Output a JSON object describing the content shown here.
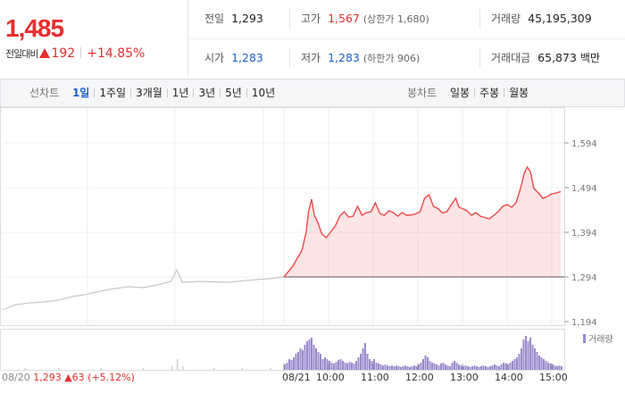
{
  "quote": {
    "current_price": "1,485",
    "change_label": "전일대비",
    "change_amount": "192",
    "change_percent": "+14.85%",
    "color_up": "#e62e2e",
    "color_down": "#1f5fcf"
  },
  "stats": {
    "prev_close": {
      "label": "전일",
      "value": "1,293"
    },
    "high": {
      "label": "고가",
      "value": "1,567",
      "sub": "(상한가 1,680)"
    },
    "volume": {
      "label": "거래량",
      "value": "45,195,309"
    },
    "open": {
      "label": "시가",
      "value": "1,283"
    },
    "low": {
      "label": "저가",
      "value": "1,283",
      "sub": "(하한가 906)"
    },
    "turnover": {
      "label": "거래대금",
      "value": "65,873",
      "unit": "백만"
    }
  },
  "toolbar": {
    "line_chart_label": "선차트",
    "periods": [
      "1일",
      "1주일",
      "3개월",
      "1년",
      "3년",
      "5년",
      "10년"
    ],
    "selected_period": "1일",
    "candle_chart_label": "봉차트",
    "candle_periods": [
      "일봉",
      "주봉",
      "월봉"
    ]
  },
  "chart_data": {
    "type": "line",
    "yticks": [
      "1,594",
      "1,494",
      "1,394",
      "1,294",
      "1,194"
    ],
    "ylim": [
      1194,
      1594
    ],
    "baseline": 1294,
    "x_labels": [
      "08/21",
      "10:00",
      "11:00",
      "12:00",
      "13:00",
      "14:00",
      "15:00"
    ],
    "prev_day": {
      "date": "08/20",
      "close": "1,293",
      "change": "63",
      "change_percent": "(+5.12%)"
    },
    "volume_legend": "거래량",
    "prev_day_series": [
      [
        0,
        1220
      ],
      [
        0.05,
        1232
      ],
      [
        0.1,
        1236
      ],
      [
        0.15,
        1238
      ],
      [
        0.2,
        1242
      ],
      [
        0.25,
        1250
      ],
      [
        0.3,
        1255
      ],
      [
        0.35,
        1262
      ],
      [
        0.4,
        1268
      ],
      [
        0.45,
        1272
      ],
      [
        0.5,
        1270
      ],
      [
        0.55,
        1276
      ],
      [
        0.6,
        1284
      ],
      [
        0.62,
        1310
      ],
      [
        0.64,
        1282
      ],
      [
        0.7,
        1284
      ],
      [
        0.75,
        1283
      ],
      [
        0.8,
        1282
      ],
      [
        0.85,
        1285
      ],
      [
        0.9,
        1288
      ],
      [
        0.95,
        1290
      ],
      [
        1,
        1294
      ]
    ],
    "today_series": [
      [
        9.0,
        1294
      ],
      [
        9.1,
        1306
      ],
      [
        9.2,
        1318
      ],
      [
        9.3,
        1336
      ],
      [
        9.4,
        1352
      ],
      [
        9.5,
        1395
      ],
      [
        9.55,
        1440
      ],
      [
        9.62,
        1468
      ],
      [
        9.68,
        1432
      ],
      [
        9.75,
        1418
      ],
      [
        9.85,
        1390
      ],
      [
        9.95,
        1382
      ],
      [
        10.05,
        1395
      ],
      [
        10.15,
        1408
      ],
      [
        10.25,
        1430
      ],
      [
        10.35,
        1440
      ],
      [
        10.45,
        1428
      ],
      [
        10.55,
        1430
      ],
      [
        10.65,
        1452
      ],
      [
        10.75,
        1432
      ],
      [
        10.85,
        1438
      ],
      [
        10.95,
        1440
      ],
      [
        11.05,
        1460
      ],
      [
        11.15,
        1436
      ],
      [
        11.25,
        1432
      ],
      [
        11.35,
        1442
      ],
      [
        11.45,
        1438
      ],
      [
        11.55,
        1430
      ],
      [
        11.65,
        1438
      ],
      [
        11.75,
        1432
      ],
      [
        11.85,
        1433
      ],
      [
        11.95,
        1435
      ],
      [
        12.05,
        1440
      ],
      [
        12.15,
        1470
      ],
      [
        12.25,
        1478
      ],
      [
        12.35,
        1452
      ],
      [
        12.45,
        1447
      ],
      [
        12.55,
        1437
      ],
      [
        12.65,
        1440
      ],
      [
        12.75,
        1456
      ],
      [
        12.85,
        1470
      ],
      [
        12.92,
        1450
      ],
      [
        13.0,
        1447
      ],
      [
        13.1,
        1442
      ],
      [
        13.2,
        1432
      ],
      [
        13.3,
        1438
      ],
      [
        13.4,
        1430
      ],
      [
        13.5,
        1427
      ],
      [
        13.6,
        1424
      ],
      [
        13.7,
        1432
      ],
      [
        13.8,
        1440
      ],
      [
        13.9,
        1452
      ],
      [
        14.0,
        1456
      ],
      [
        14.1,
        1450
      ],
      [
        14.2,
        1460
      ],
      [
        14.3,
        1492
      ],
      [
        14.38,
        1525
      ],
      [
        14.45,
        1540
      ],
      [
        14.52,
        1530
      ],
      [
        14.6,
        1492
      ],
      [
        14.7,
        1482
      ],
      [
        14.8,
        1470
      ],
      [
        14.9,
        1474
      ],
      [
        15.0,
        1480
      ],
      [
        15.1,
        1482
      ],
      [
        15.2,
        1485
      ]
    ],
    "volume_bars": [
      [
        9.0,
        0.15
      ],
      [
        9.05,
        0.2
      ],
      [
        9.1,
        0.3
      ],
      [
        9.15,
        0.28
      ],
      [
        9.2,
        0.35
      ],
      [
        9.25,
        0.45
      ],
      [
        9.3,
        0.5
      ],
      [
        9.35,
        0.6
      ],
      [
        9.4,
        0.55
      ],
      [
        9.45,
        0.7
      ],
      [
        9.5,
        0.8
      ],
      [
        9.55,
        0.85
      ],
      [
        9.6,
        0.9
      ],
      [
        9.65,
        0.7
      ],
      [
        9.7,
        0.6
      ],
      [
        9.75,
        0.5
      ],
      [
        9.8,
        0.45
      ],
      [
        9.85,
        0.3
      ],
      [
        9.9,
        0.35
      ],
      [
        9.95,
        0.3
      ],
      [
        10.0,
        0.25
      ],
      [
        10.05,
        0.2
      ],
      [
        10.1,
        0.18
      ],
      [
        10.15,
        0.22
      ],
      [
        10.2,
        0.28
      ],
      [
        10.25,
        0.3
      ],
      [
        10.3,
        0.25
      ],
      [
        10.35,
        0.2
      ],
      [
        10.4,
        0.18
      ],
      [
        10.45,
        0.22
      ],
      [
        10.5,
        0.2
      ],
      [
        10.55,
        0.18
      ],
      [
        10.6,
        0.25
      ],
      [
        10.65,
        0.35
      ],
      [
        10.7,
        0.45
      ],
      [
        10.75,
        0.6
      ],
      [
        10.8,
        0.75
      ],
      [
        10.85,
        0.45
      ],
      [
        10.9,
        0.3
      ],
      [
        10.95,
        0.25
      ],
      [
        11.0,
        0.3
      ],
      [
        11.05,
        0.2
      ],
      [
        11.1,
        0.18
      ],
      [
        11.15,
        0.15
      ],
      [
        11.2,
        0.12
      ],
      [
        11.25,
        0.15
      ],
      [
        11.3,
        0.12
      ],
      [
        11.35,
        0.1
      ],
      [
        11.4,
        0.12
      ],
      [
        11.45,
        0.1
      ],
      [
        11.5,
        0.12
      ],
      [
        11.55,
        0.1
      ],
      [
        11.6,
        0.08
      ],
      [
        11.65,
        0.1
      ],
      [
        11.7,
        0.12
      ],
      [
        11.75,
        0.1
      ],
      [
        11.8,
        0.08
      ],
      [
        11.85,
        0.1
      ],
      [
        11.9,
        0.12
      ],
      [
        11.95,
        0.1
      ],
      [
        12.0,
        0.15
      ],
      [
        12.05,
        0.2
      ],
      [
        12.1,
        0.3
      ],
      [
        12.15,
        0.4
      ],
      [
        12.2,
        0.35
      ],
      [
        12.25,
        0.25
      ],
      [
        12.3,
        0.2
      ],
      [
        12.35,
        0.18
      ],
      [
        12.4,
        0.15
      ],
      [
        12.45,
        0.12
      ],
      [
        12.5,
        0.18
      ],
      [
        12.55,
        0.2
      ],
      [
        12.6,
        0.15
      ],
      [
        12.65,
        0.12
      ],
      [
        12.7,
        0.1
      ],
      [
        12.75,
        0.2
      ],
      [
        12.8,
        0.25
      ],
      [
        12.85,
        0.2
      ],
      [
        12.9,
        0.15
      ],
      [
        12.95,
        0.12
      ],
      [
        13.0,
        0.1
      ],
      [
        13.05,
        0.12
      ],
      [
        13.1,
        0.1
      ],
      [
        13.15,
        0.08
      ],
      [
        13.2,
        0.1
      ],
      [
        13.25,
        0.12
      ],
      [
        13.3,
        0.1
      ],
      [
        13.35,
        0.08
      ],
      [
        13.4,
        0.1
      ],
      [
        13.45,
        0.12
      ],
      [
        13.5,
        0.1
      ],
      [
        13.55,
        0.08
      ],
      [
        13.6,
        0.1
      ],
      [
        13.65,
        0.12
      ],
      [
        13.7,
        0.15
      ],
      [
        13.75,
        0.12
      ],
      [
        13.8,
        0.1
      ],
      [
        13.85,
        0.15
      ],
      [
        13.9,
        0.2
      ],
      [
        13.95,
        0.18
      ],
      [
        14.0,
        0.15
      ],
      [
        14.05,
        0.2
      ],
      [
        14.1,
        0.25
      ],
      [
        14.15,
        0.3
      ],
      [
        14.2,
        0.35
      ],
      [
        14.25,
        0.45
      ],
      [
        14.3,
        0.6
      ],
      [
        14.35,
        0.85
      ],
      [
        14.4,
        0.95
      ],
      [
        14.45,
        0.8
      ],
      [
        14.5,
        0.9
      ],
      [
        14.55,
        0.7
      ],
      [
        14.6,
        0.6
      ],
      [
        14.65,
        0.5
      ],
      [
        14.7,
        0.4
      ],
      [
        14.75,
        0.35
      ],
      [
        14.8,
        0.3
      ],
      [
        14.85,
        0.25
      ],
      [
        14.9,
        0.2
      ],
      [
        14.95,
        0.18
      ],
      [
        15.0,
        0.15
      ],
      [
        15.05,
        0.12
      ],
      [
        15.1,
        0.1
      ],
      [
        15.15,
        0.12
      ],
      [
        15.2,
        0.1
      ]
    ],
    "prev_volume_bars": [
      [
        0.08,
        0.04
      ],
      [
        0.2,
        0.05
      ],
      [
        0.35,
        0.05
      ],
      [
        0.5,
        0.06
      ],
      [
        0.6,
        0.1
      ],
      [
        0.62,
        0.3
      ],
      [
        0.64,
        0.1
      ],
      [
        0.75,
        0.06
      ],
      [
        0.85,
        0.05
      ],
      [
        0.95,
        0.06
      ]
    ]
  }
}
